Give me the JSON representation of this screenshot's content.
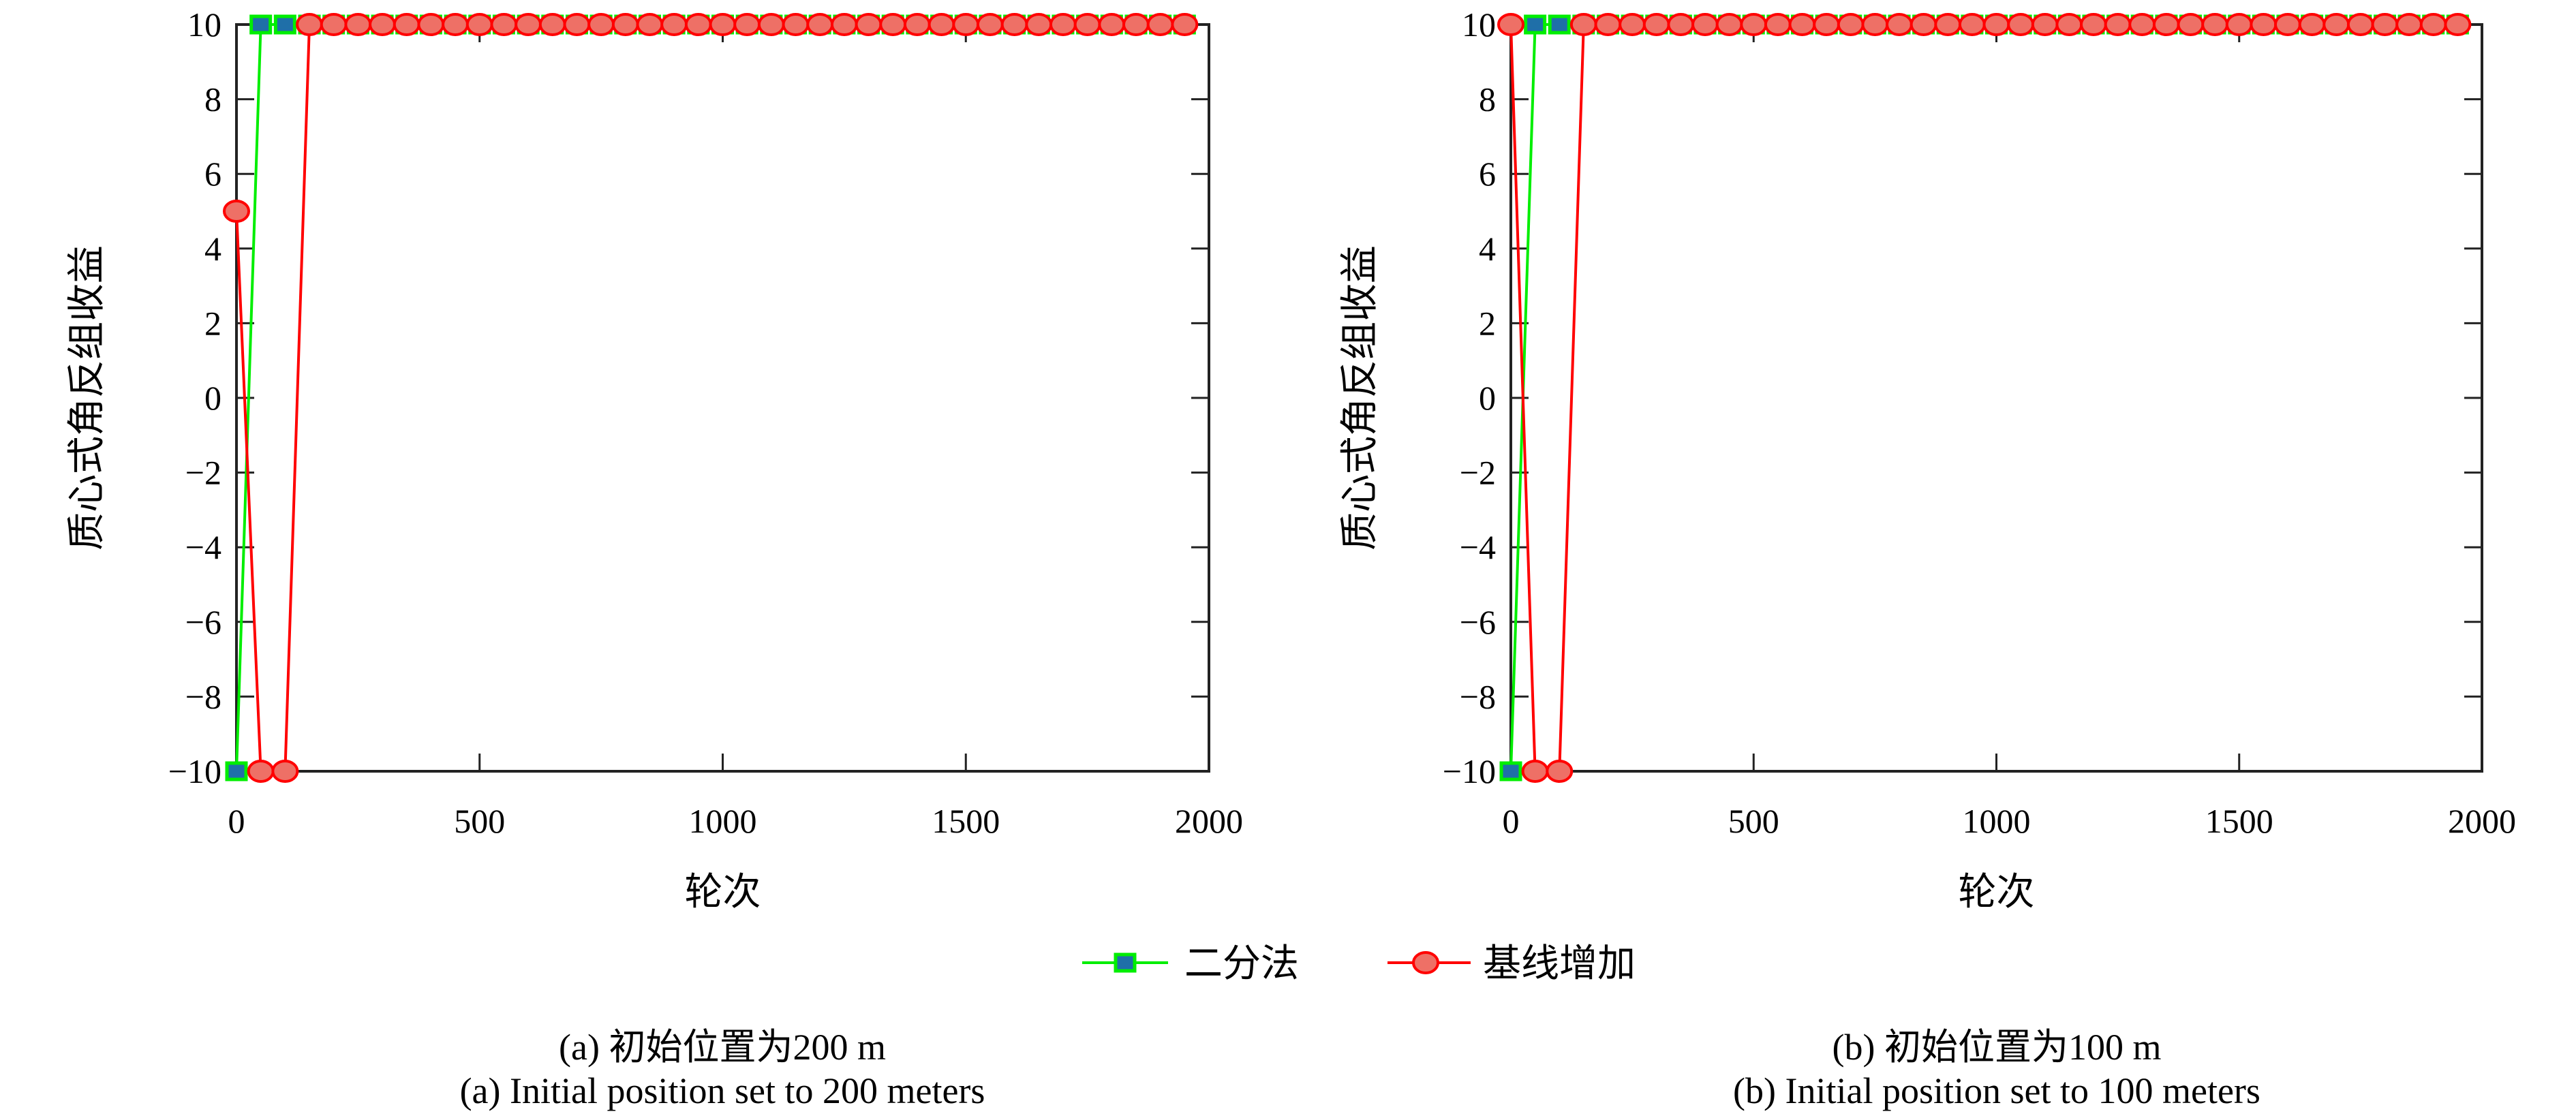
{
  "colors": {
    "bisection_line": "#00ee00",
    "bisection_marker_fill": "#1f6fa8",
    "baseline_line": "#ff0000",
    "baseline_marker_fill": "#ee7066"
  },
  "legend": {
    "placement": "bottom-center",
    "entries": [
      "二分法",
      "基线增加"
    ]
  },
  "chart_data": [
    {
      "type": "line",
      "xlabel": "轮次",
      "ylabel": "质心式角反组收益",
      "xlim": [
        0,
        2000
      ],
      "ylim": [
        -10,
        10
      ],
      "xticks": [
        0,
        500,
        1000,
        1500,
        2000
      ],
      "yticks": [
        -10,
        -8,
        -6,
        -4,
        -2,
        0,
        2,
        4,
        6,
        8,
        10
      ],
      "grid": false,
      "caption_cn": "(a) 初始位置为200 m",
      "caption_en": "(a) Initial position set to 200 meters",
      "series": [
        {
          "name": "二分法",
          "marker": "square",
          "x_start": 0,
          "x_step": 50,
          "values": [
            -10,
            10,
            10,
            10,
            10,
            10,
            10,
            10,
            10,
            10,
            10,
            10,
            10,
            10,
            10,
            10,
            10,
            10,
            10,
            10,
            10,
            10,
            10,
            10,
            10,
            10,
            10,
            10,
            10,
            10,
            10,
            10,
            10,
            10,
            10,
            10,
            10,
            10,
            10,
            10
          ]
        },
        {
          "name": "基线增加",
          "marker": "circle",
          "x_start": 0,
          "x_step": 50,
          "values": [
            5,
            -10,
            -10,
            10,
            10,
            10,
            10,
            10,
            10,
            10,
            10,
            10,
            10,
            10,
            10,
            10,
            10,
            10,
            10,
            10,
            10,
            10,
            10,
            10,
            10,
            10,
            10,
            10,
            10,
            10,
            10,
            10,
            10,
            10,
            10,
            10,
            10,
            10,
            10,
            10
          ]
        }
      ]
    },
    {
      "type": "line",
      "xlabel": "轮次",
      "ylabel": "质心式角反组收益",
      "xlim": [
        0,
        2000
      ],
      "ylim": [
        -10,
        10
      ],
      "xticks": [
        0,
        500,
        1000,
        1500,
        2000
      ],
      "yticks": [
        -10,
        -8,
        -6,
        -4,
        -2,
        0,
        2,
        4,
        6,
        8,
        10
      ],
      "grid": false,
      "caption_cn": "(b) 初始位置为100 m",
      "caption_en": "(b) Initial position set to 100 meters",
      "series": [
        {
          "name": "二分法",
          "marker": "square",
          "x_start": 0,
          "x_step": 50,
          "values": [
            -10,
            10,
            10,
            10,
            10,
            10,
            10,
            10,
            10,
            10,
            10,
            10,
            10,
            10,
            10,
            10,
            10,
            10,
            10,
            10,
            10,
            10,
            10,
            10,
            10,
            10,
            10,
            10,
            10,
            10,
            10,
            10,
            10,
            10,
            10,
            10,
            10,
            10,
            10,
            10
          ]
        },
        {
          "name": "基线增加",
          "marker": "circle",
          "x_start": 0,
          "x_step": 50,
          "values": [
            10,
            -10,
            -10,
            10,
            10,
            10,
            10,
            10,
            10,
            10,
            10,
            10,
            10,
            10,
            10,
            10,
            10,
            10,
            10,
            10,
            10,
            10,
            10,
            10,
            10,
            10,
            10,
            10,
            10,
            10,
            10,
            10,
            10,
            10,
            10,
            10,
            10,
            10,
            10,
            10
          ]
        }
      ]
    }
  ]
}
